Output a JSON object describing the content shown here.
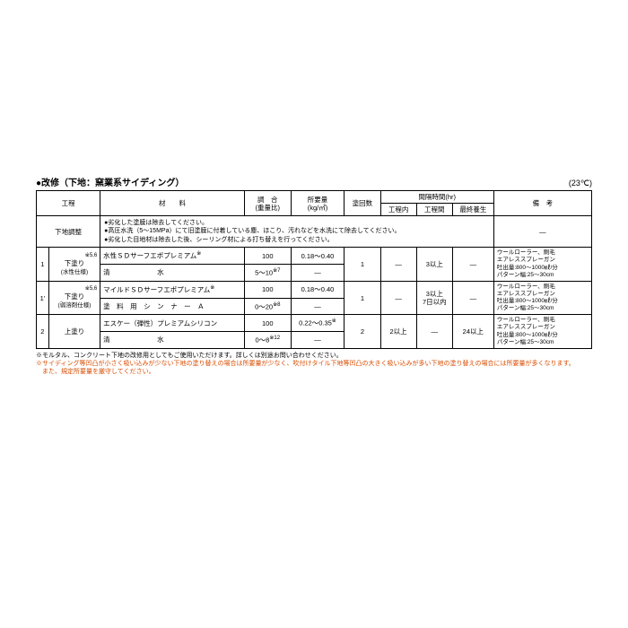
{
  "title": "●改修（下地：窯業系サイディング）",
  "temp": "(23℃)",
  "columns": {
    "process": "工程",
    "material": "材　　料",
    "ratio": "調　合",
    "ratio_sub": "(重量比)",
    "amount": "所要量",
    "amount_sub": "(kg/㎡)",
    "coats": "塗回数",
    "interval": "間隔時間(hr)",
    "interval_in": "工程内",
    "interval_btw": "工程間",
    "cure": "最終養生",
    "remarks": "備　考"
  },
  "rows": {
    "prep_label": "下地調整",
    "prep_text": "●劣化した塗膜は除去してください。\n●高圧水洗（5～15MPa）にて旧塗膜に付着している塵、ほこり、汚れなどを水洗にて除去してください。\n●劣化した目地材は除去した後、シーリング材による打ち替えを行ってください。",
    "r1_num": "1",
    "r1_label": "下塗り",
    "r1_sub": "(水性仕様)",
    "r1_sup": "※5,6",
    "r1_mat1": "水性ＳＤサーフエポプレミアム",
    "r1_mat1_sup": "※",
    "r1_ratio1": "100",
    "r1_amt1": "0.18～0.40",
    "r1_mat2": "清　　　　　　　水",
    "r1_ratio2": "5～10",
    "r1_ratio2_sup": "※7",
    "r1_coats": "1",
    "r1_in": "―",
    "r1_btw": "3以上",
    "r1_cure": "―",
    "r2_num": "1'",
    "r2_label": "下塗り",
    "r2_sub": "(弱溶剤仕様)",
    "r2_sup": "※5,6",
    "r2_mat1": "マイルドＳＤサーフエポプレミアム",
    "r2_mat1_sup": "※",
    "r2_ratio1": "100",
    "r2_amt1": "0.18～0.40",
    "r2_mat2": "塗　料　用　シ　ン　ナ　ー　Ａ",
    "r2_ratio2": "0～20",
    "r2_ratio2_sup": "※8",
    "r2_coats": "1",
    "r2_in": "―",
    "r2_btw": "3以上\n7日以内",
    "r2_cure": "―",
    "r3_num": "2",
    "r3_label": "上塗り",
    "r3_mat1": "エスケー（弾性）プレミアムシリコン",
    "r3_ratio1": "100",
    "r3_amt1": "0.22～0.35",
    "r3_amt1_sup": "※",
    "r3_mat2": "清　　　　　　　水",
    "r3_ratio2": "0～8",
    "r3_ratio2_sup": "※12",
    "r3_coats": "2",
    "r3_in": "2以上",
    "r3_btw": "―",
    "r3_cure": "24以上",
    "remarks_text": "ウールローラー、刷毛\nエアレススプレーガン\n吐出量:800～1000㎖/分\nパターン幅:25～30cm",
    "dash": "―"
  },
  "footnotes": {
    "f1": "※モルタル、コンクリート下地の改修用としてもご使用いただけます。詳しくは別途お問い合わせください。",
    "f2": "※サイディング等凹凸が小さく吸い込みが少ない下地の塗り替えの場合は所要量が少なく、吹付けタイル下地等凹凸の大きく吸い込みが多い下地の塗り替えの場合には所要量が多くなります。",
    "f3": "　また、規定所要量を厳守してください。"
  }
}
